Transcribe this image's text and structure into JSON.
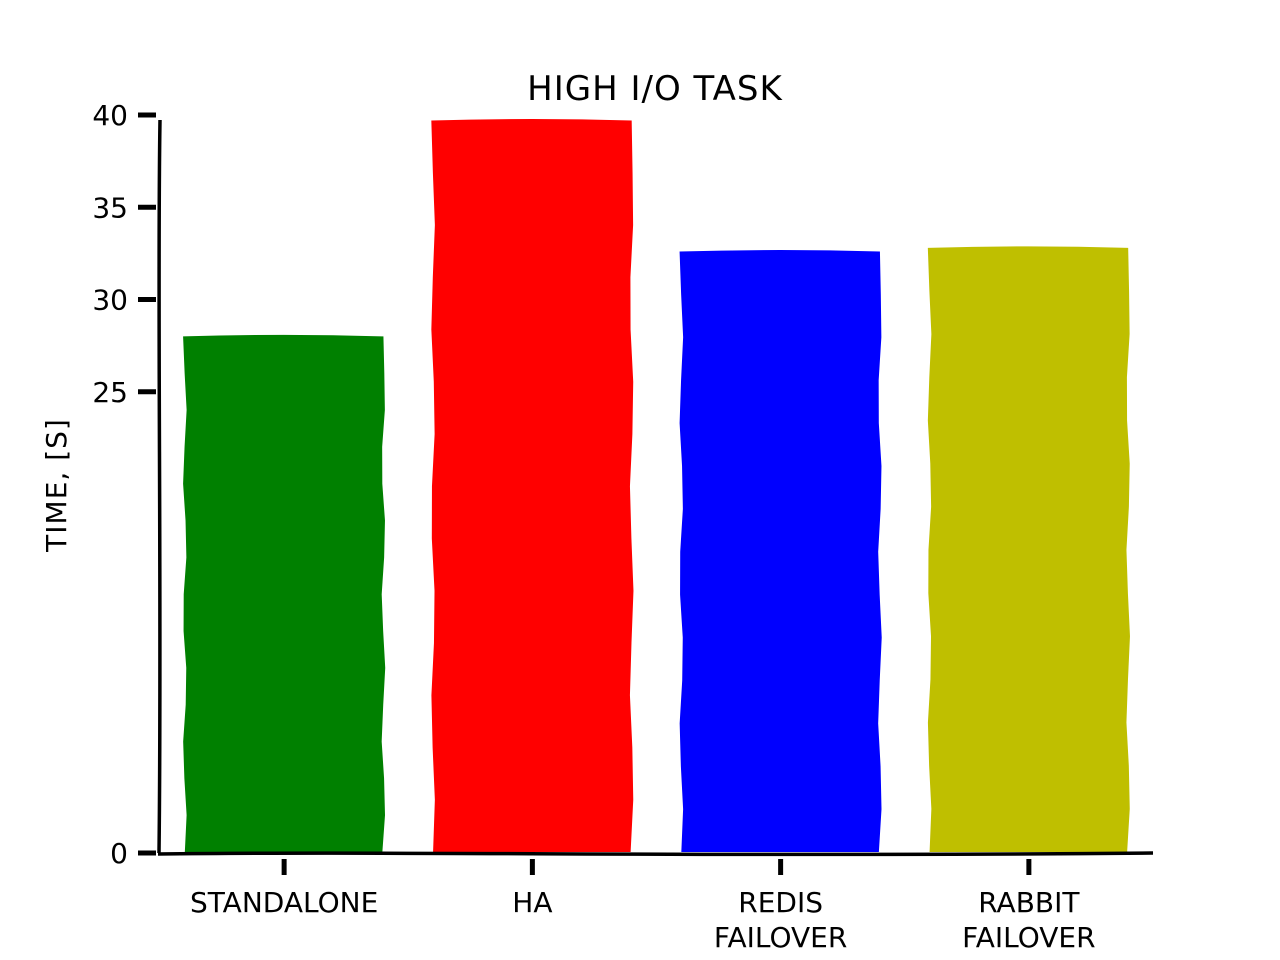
{
  "chart_data": {
    "type": "bar",
    "title": "High I/O task",
    "xlabel": "",
    "ylabel": "Time, [s]",
    "categories": [
      [
        "Standalone"
      ],
      [
        "HA"
      ],
      [
        "Redis",
        "failover"
      ],
      [
        "Rabbit",
        "failover"
      ]
    ],
    "values": [
      28,
      39.7,
      32.6,
      32.8
    ],
    "colors": [
      "#008000",
      "#ff0000",
      "#0000ff",
      "#bfbf00"
    ],
    "yticks": [
      0,
      25,
      30,
      35,
      40
    ],
    "ylim": [
      0,
      40
    ],
    "grid": false,
    "legend": "none"
  }
}
